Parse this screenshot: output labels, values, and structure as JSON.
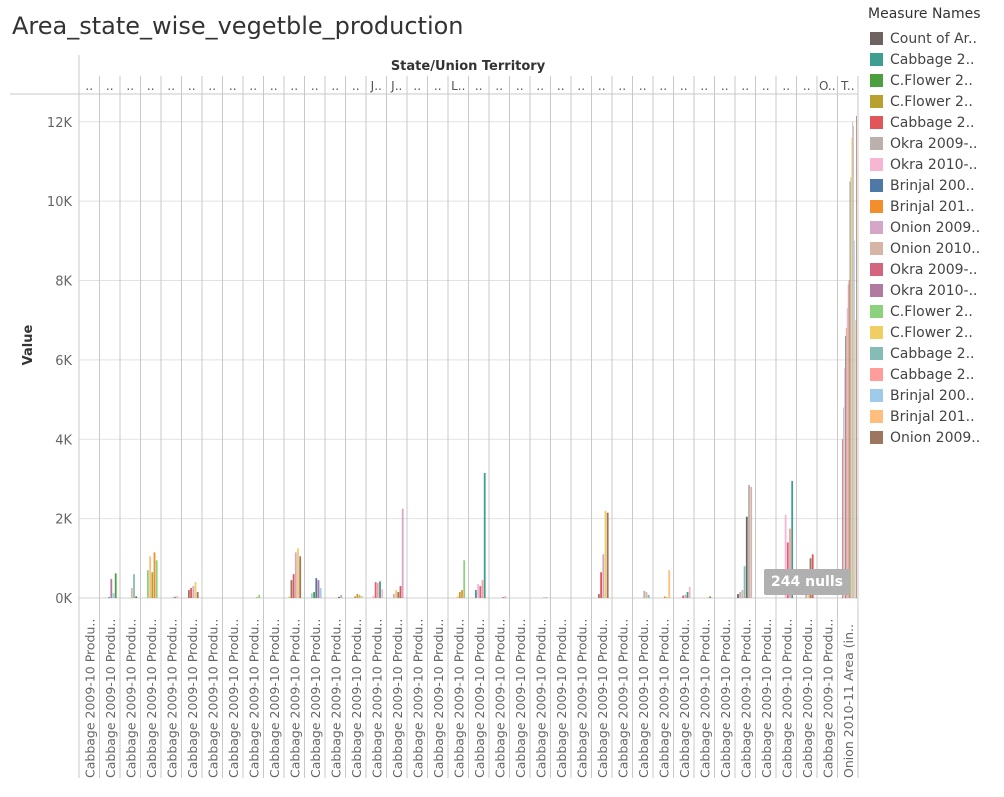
{
  "title": "Area_state_wise_vegetble_production",
  "nulls_badge": "244 nulls",
  "legend_title": "Measure Names",
  "colors": {
    "grid": "#e2e2e2",
    "divider": "#c8c8c8",
    "axis_text": "#666666",
    "badge": "#b0b0b0"
  },
  "chart_data": {
    "type": "bar",
    "title": "Area_state_wise_vegetble_production",
    "column_header": "State/Union Territory",
    "ylabel": "Value",
    "ylim": [
      0,
      12700
    ],
    "yticks": [
      0,
      2000,
      4000,
      6000,
      8000,
      10000,
      12000
    ],
    "ytick_labels": [
      "0K",
      "2K",
      "4K",
      "6K",
      "8K",
      "10K",
      "12K"
    ],
    "grid": true,
    "legend_position": "right",
    "column_labels": [
      "..",
      "..",
      "..",
      "..",
      "..",
      "..",
      "..",
      "..",
      "..",
      "..",
      "..",
      "..",
      "..",
      "..",
      "J..",
      "J..",
      "..",
      "..",
      "L..",
      "..",
      "..",
      "..",
      "..",
      "..",
      "..",
      "..",
      "..",
      "..",
      "..",
      "..",
      "..",
      "..",
      "..",
      "..",
      "..",
      "..",
      "O..",
      "T.."
    ],
    "x_labels": [
      "Cabbage 2009-10 Produ..",
      "Cabbage 2009-10 Produ..",
      "Cabbage 2009-10 Produ..",
      "Cabbage 2009-10 Produ..",
      "Cabbage 2009-10 Produ..",
      "Cabbage 2009-10 Produ..",
      "Cabbage 2009-10 Produ..",
      "Cabbage 2009-10 Produ..",
      "Cabbage 2009-10 Produ..",
      "Cabbage 2009-10 Produ..",
      "Cabbage 2009-10 Produ..",
      "Cabbage 2009-10 Produ..",
      "Cabbage 2009-10 Produ..",
      "Cabbage 2009-10 Produ..",
      "Cabbage 2009-10 Produ..",
      "Cabbage 2009-10 Produ..",
      "Cabbage 2009-10 Produ..",
      "Cabbage 2009-10 Produ..",
      "Cabbage 2009-10 Produ..",
      "Cabbage 2009-10 Produ..",
      "Cabbage 2009-10 Produ..",
      "Cabbage 2009-10 Produ..",
      "Cabbage 2009-10 Produ..",
      "Cabbage 2009-10 Produ..",
      "Cabbage 2009-10 Produ..",
      "Cabbage 2009-10 Produ..",
      "Cabbage 2009-10 Produ..",
      "Cabbage 2009-10 Produ..",
      "Cabbage 2009-10 Produ..",
      "Cabbage 2009-10 Produ..",
      "Cabbage 2009-10 Produ..",
      "Cabbage 2009-10 Produ..",
      "Cabbage 2009-10 Produ..",
      "Cabbage 2009-10 Produ..",
      "Cabbage 2009-10 Produ..",
      "Cabbage 2009-10 Produ..",
      "Cabbage 2009-10 Produ..",
      "Onion 2010-11 Area (in.."
    ],
    "legend": [
      {
        "label": "Count of Ar..",
        "color": "#6f6362"
      },
      {
        "label": "Cabbage 2..",
        "color": "#3d9e91"
      },
      {
        "label": "C.Flower 2..",
        "color": "#4c9f3e"
      },
      {
        "label": "C.Flower 2..",
        "color": "#b8a12e"
      },
      {
        "label": "Cabbage 2..",
        "color": "#e15759"
      },
      {
        "label": "Okra 2009-..",
        "color": "#bab0ac"
      },
      {
        "label": "Okra 2010-..",
        "color": "#f7b6d2"
      },
      {
        "label": "Brinjal 200..",
        "color": "#4e79a7"
      },
      {
        "label": "Brinjal 201..",
        "color": "#f28e2b"
      },
      {
        "label": "Onion 2009..",
        "color": "#d4a6c8"
      },
      {
        "label": "Onion 2010..",
        "color": "#d7b5a6"
      },
      {
        "label": "Okra 2009-..",
        "color": "#d4657e"
      },
      {
        "label": "Okra 2010-..",
        "color": "#b07aa1"
      },
      {
        "label": "C.Flower 2..",
        "color": "#8cd17d"
      },
      {
        "label": "C.Flower 2..",
        "color": "#f1ce63"
      },
      {
        "label": "Cabbage 2..",
        "color": "#86bcb6"
      },
      {
        "label": "Cabbage 2..",
        "color": "#ff9d9a"
      },
      {
        "label": "Brinjal 200..",
        "color": "#a0cbe8"
      },
      {
        "label": "Brinjal 201..",
        "color": "#ffbe7d"
      },
      {
        "label": "Onion 2009..",
        "color": "#9d7660"
      }
    ],
    "series_values": [
      [
        0,
        0,
        0,
        0,
        0,
        0,
        0,
        0,
        0,
        0,
        0,
        0,
        0,
        0,
        0,
        0,
        0,
        0,
        0,
        0,
        0,
        0,
        0,
        0,
        0,
        0,
        0,
        0,
        0,
        0,
        0,
        0,
        0,
        0,
        0,
        0,
        0,
        0
      ],
      [
        0,
        0,
        0,
        0,
        0,
        0,
        0,
        0,
        0,
        0,
        0,
        0,
        0,
        0,
        0,
        0,
        0,
        0,
        0,
        0,
        0,
        0,
        0,
        0,
        0,
        0,
        0,
        0,
        0,
        0,
        0,
        0,
        0,
        0,
        0,
        0,
        0,
        0
      ],
      [
        0,
        0,
        0,
        0,
        0,
        0,
        0,
        0,
        0,
        0,
        0,
        0,
        0,
        0,
        0,
        0,
        0,
        0,
        0,
        0,
        0,
        0,
        0,
        0,
        0,
        0,
        0,
        0,
        0,
        0,
        0,
        0,
        0,
        0,
        0,
        0,
        0,
        0
      ],
      [
        0,
        0,
        0,
        0,
        0,
        0,
        0,
        0,
        0,
        0,
        0,
        0,
        0,
        0,
        0,
        0,
        0,
        0,
        0,
        0,
        0,
        0,
        0,
        0,
        0,
        0,
        0,
        0,
        0,
        0,
        0,
        0,
        0,
        0,
        0,
        0,
        0,
        0
      ],
      [
        0,
        0,
        0,
        0,
        0,
        0,
        0,
        0,
        0,
        0,
        0,
        0,
        0,
        0,
        0,
        0,
        0,
        0,
        0,
        0,
        0,
        0,
        0,
        0,
        0,
        0,
        0,
        0,
        0,
        0,
        0,
        0,
        0,
        0,
        0,
        0,
        0,
        4000
      ],
      [
        0,
        0,
        0,
        0,
        0,
        0,
        0,
        0,
        0,
        0,
        0,
        0,
        0,
        0,
        0,
        0,
        0,
        0,
        0,
        0,
        0,
        0,
        0,
        0,
        0,
        0,
        0,
        0,
        0,
        0,
        0,
        0,
        0,
        0,
        0,
        0,
        0,
        4800
      ],
      [
        0,
        0,
        0,
        0,
        0,
        0,
        0,
        0,
        0,
        0,
        0,
        0,
        0,
        0,
        0,
        0,
        0,
        0,
        0,
        0,
        0,
        0,
        0,
        0,
        0,
        0,
        0,
        0,
        0,
        0,
        0,
        0,
        0,
        0,
        0,
        0,
        0,
        5800
      ],
      [
        0,
        0,
        0,
        0,
        0,
        0,
        0,
        0,
        0,
        0,
        0,
        0,
        0,
        0,
        0,
        0,
        0,
        0,
        0,
        0,
        0,
        0,
        0,
        0,
        0,
        0,
        0,
        0,
        0,
        0,
        0,
        0,
        0,
        0,
        0,
        0,
        0,
        6600
      ],
      [
        0,
        0,
        0,
        0,
        0,
        0,
        0,
        0,
        0,
        0,
        0,
        0,
        0,
        0,
        0,
        0,
        0,
        0,
        0,
        0,
        0,
        0,
        0,
        0,
        0,
        0,
        0,
        0,
        0,
        0,
        0,
        0,
        0,
        0,
        0,
        0,
        0,
        6800
      ],
      [
        0,
        0,
        0,
        0,
        0,
        0,
        0,
        0,
        0,
        0,
        0,
        0,
        0,
        0,
        0,
        0,
        0,
        0,
        0,
        0,
        0,
        0,
        0,
        0,
        0,
        0,
        0,
        0,
        0,
        0,
        0,
        0,
        0,
        0,
        0,
        0,
        0,
        7300
      ],
      [
        0,
        0,
        0,
        0,
        0,
        0,
        0,
        0,
        0,
        0,
        0,
        0,
        0,
        0,
        0,
        0,
        0,
        0,
        0,
        0,
        0,
        0,
        0,
        0,
        0,
        0,
        0,
        0,
        0,
        0,
        0,
        0,
        0,
        0,
        0,
        0,
        0,
        7900
      ],
      [
        0,
        0,
        0,
        450,
        0,
        0,
        0,
        0,
        0,
        0,
        450,
        0,
        0,
        0,
        0,
        0,
        0,
        0,
        0,
        0,
        0,
        0,
        0,
        0,
        0,
        0,
        500,
        0,
        0,
        0,
        0,
        0,
        0,
        0,
        0,
        0,
        0,
        8000
      ],
      [
        0,
        0,
        0,
        0,
        0,
        0,
        0,
        0,
        0,
        0,
        0,
        0,
        0,
        0,
        0,
        0,
        0,
        0,
        0,
        0,
        0,
        0,
        0,
        0,
        0,
        0,
        0,
        0,
        0,
        0,
        0,
        0,
        0,
        0,
        0,
        0,
        0,
        10500
      ],
      [
        0,
        0,
        0,
        0,
        0,
        0,
        0,
        0,
        0,
        0,
        0,
        0,
        0,
        0,
        0,
        0,
        0,
        0,
        0,
        0,
        0,
        0,
        0,
        0,
        0,
        0,
        0,
        0,
        0,
        0,
        0,
        0,
        0,
        0,
        0,
        0,
        0,
        10600
      ],
      [
        0,
        0,
        0,
        0,
        0,
        0,
        0,
        0,
        0,
        0,
        0,
        0,
        0,
        0,
        0,
        0,
        0,
        0,
        0,
        0,
        0,
        0,
        0,
        0,
        0,
        0,
        0,
        0,
        0,
        0,
        0,
        0,
        0,
        0,
        0,
        0,
        0,
        11600
      ],
      [
        0,
        0,
        0,
        0,
        0,
        0,
        0,
        0,
        0,
        0,
        0,
        0,
        0,
        0,
        0,
        0,
        0,
        0,
        0,
        0,
        0,
        0,
        0,
        0,
        0,
        0,
        0,
        0,
        0,
        0,
        0,
        0,
        0,
        0,
        0,
        0,
        0,
        12000
      ],
      [
        0,
        0,
        0,
        0,
        0,
        0,
        0,
        0,
        0,
        0,
        0,
        0,
        0,
        0,
        0,
        0,
        0,
        0,
        0,
        0,
        0,
        0,
        0,
        0,
        0,
        0,
        0,
        0,
        0,
        0,
        0,
        0,
        0,
        0,
        0,
        0,
        0,
        11900
      ],
      [
        0,
        0,
        0,
        0,
        0,
        0,
        0,
        0,
        0,
        0,
        0,
        0,
        0,
        0,
        0,
        0,
        0,
        0,
        0,
        0,
        0,
        0,
        0,
        0,
        0,
        0,
        0,
        0,
        0,
        0,
        0,
        0,
        0,
        0,
        0,
        0,
        0,
        9000
      ],
      [
        0,
        0,
        0,
        0,
        0,
        0,
        0,
        0,
        0,
        0,
        0,
        0,
        0,
        0,
        0,
        0,
        0,
        0,
        0,
        0,
        0,
        0,
        0,
        0,
        0,
        0,
        0,
        0,
        0,
        0,
        0,
        0,
        0,
        0,
        0,
        0,
        0,
        7000
      ],
      [
        0,
        0,
        0,
        0,
        0,
        0,
        0,
        0,
        0,
        0,
        0,
        0,
        0,
        0,
        0,
        0,
        0,
        0,
        0,
        0,
        0,
        0,
        0,
        0,
        0,
        0,
        0,
        0,
        0,
        0,
        0,
        0,
        0,
        0,
        0,
        0,
        0,
        12150
      ]
    ],
    "group_values": [
      [
        0,
        0,
        0,
        10,
        0,
        20,
        0,
        0,
        0,
        0,
        0,
        10,
        0,
        0,
        10,
        10,
        0,
        0,
        0,
        0,
        0,
        0,
        0,
        0,
        0,
        0,
        0,
        0,
        0,
        0,
        0,
        0,
        0,
        0,
        0,
        0,
        0,
        0
      ],
      [
        0,
        0,
        20,
        0,
        0,
        10,
        0,
        0,
        0,
        0,
        10,
        0,
        0,
        0,
        20,
        0,
        10,
        0,
        0,
        0,
        0,
        0,
        0,
        0,
        0,
        0,
        0,
        0,
        0,
        0,
        0,
        0,
        0,
        0,
        0,
        0,
        0,
        0
      ],
      [
        0,
        0,
        0,
        30,
        0,
        10,
        0,
        0,
        0,
        0,
        20,
        0,
        0,
        0,
        0,
        20,
        0,
        0,
        0,
        0,
        0,
        0,
        0,
        0,
        0,
        10,
        0,
        0,
        0,
        0,
        0,
        0,
        0,
        0,
        0,
        0,
        0,
        0
      ],
      [
        0,
        0,
        0,
        10,
        0,
        0,
        0,
        0,
        0,
        0,
        0,
        0,
        0,
        0,
        0,
        0,
        0,
        0,
        0,
        0,
        0,
        0,
        0,
        0,
        0,
        0,
        0,
        0,
        0,
        0,
        0,
        0,
        0,
        0,
        0,
        0,
        0,
        0
      ],
      [
        0,
        0,
        0,
        30,
        0,
        0,
        0,
        0,
        0,
        0,
        0,
        10,
        0,
        0,
        0,
        0,
        0,
        0,
        0,
        0,
        0,
        0,
        0,
        0,
        0,
        0,
        0,
        0,
        0,
        0,
        0,
        0,
        0,
        0,
        0,
        0,
        0,
        0
      ],
      [
        0,
        0,
        0,
        0,
        0,
        0,
        0,
        0,
        0,
        0,
        0,
        0,
        0,
        0,
        0,
        0,
        0,
        0,
        0,
        0,
        0,
        0,
        0,
        0,
        0,
        0,
        0,
        0,
        0,
        0,
        0,
        0,
        0,
        0,
        0,
        0,
        0,
        0
      ]
    ],
    "cluster_peaks": [
      {
        "col": 0,
        "values": [
          0
        ]
      },
      {
        "col": 1,
        "values": [
          20,
          480,
          120,
          620
        ]
      },
      {
        "col": 2,
        "values": [
          250,
          600,
          40
        ]
      },
      {
        "col": 3,
        "values": [
          700,
          1050,
          650,
          1150,
          950
        ]
      },
      {
        "col": 4,
        "values": [
          20,
          30,
          50
        ]
      },
      {
        "col": 5,
        "values": [
          200,
          250,
          300,
          400,
          150
        ]
      },
      {
        "col": 6,
        "values": [
          0
        ]
      },
      {
        "col": 7,
        "values": [
          0
        ]
      },
      {
        "col": 8,
        "values": [
          20,
          80
        ]
      },
      {
        "col": 9,
        "values": [
          0
        ]
      },
      {
        "col": 10,
        "values": [
          40,
          450,
          600,
          1150,
          1250,
          1050
        ]
      },
      {
        "col": 11,
        "values": [
          120,
          150,
          500,
          450,
          250
        ]
      },
      {
        "col": 12,
        "values": [
          30,
          80
        ]
      },
      {
        "col": 13,
        "values": [
          40,
          100,
          80,
          50
        ]
      },
      {
        "col": 14,
        "values": [
          50,
          400,
          380,
          420,
          220
        ]
      },
      {
        "col": 15,
        "values": [
          100,
          200,
          150,
          300,
          2250
        ]
      },
      {
        "col": 16,
        "values": [
          0
        ]
      },
      {
        "col": 17,
        "values": [
          0
        ]
      },
      {
        "col": 18,
        "values": [
          40,
          150,
          200,
          950
        ]
      },
      {
        "col": 19,
        "values": [
          200,
          350,
          300,
          450,
          3150
        ]
      },
      {
        "col": 20,
        "values": [
          20,
          40
        ]
      },
      {
        "col": 21,
        "values": [
          0
        ]
      },
      {
        "col": 22,
        "values": [
          20,
          20
        ]
      },
      {
        "col": 23,
        "values": [
          0
        ]
      },
      {
        "col": 24,
        "values": [
          0
        ]
      },
      {
        "col": 25,
        "values": [
          100,
          650,
          1100,
          2200,
          2150
        ]
      },
      {
        "col": 26,
        "values": [
          0
        ]
      },
      {
        "col": 27,
        "values": [
          180,
          150,
          80
        ]
      },
      {
        "col": 28,
        "values": [
          40,
          20,
          700
        ]
      },
      {
        "col": 29,
        "values": [
          60,
          80,
          150,
          280
        ]
      },
      {
        "col": 30,
        "values": [
          20,
          40
        ]
      },
      {
        "col": 31,
        "values": [
          0
        ]
      },
      {
        "col": 32,
        "values": [
          100,
          150,
          200,
          800,
          2050,
          2850,
          2800
        ]
      },
      {
        "col": 33,
        "values": [
          0
        ]
      },
      {
        "col": 34,
        "values": [
          2100,
          1400,
          1750,
          2950
        ]
      },
      {
        "col": 35,
        "values": [
          300,
          500,
          1000,
          1100
        ]
      },
      {
        "col": 36,
        "values": [
          0
        ]
      }
    ]
  }
}
